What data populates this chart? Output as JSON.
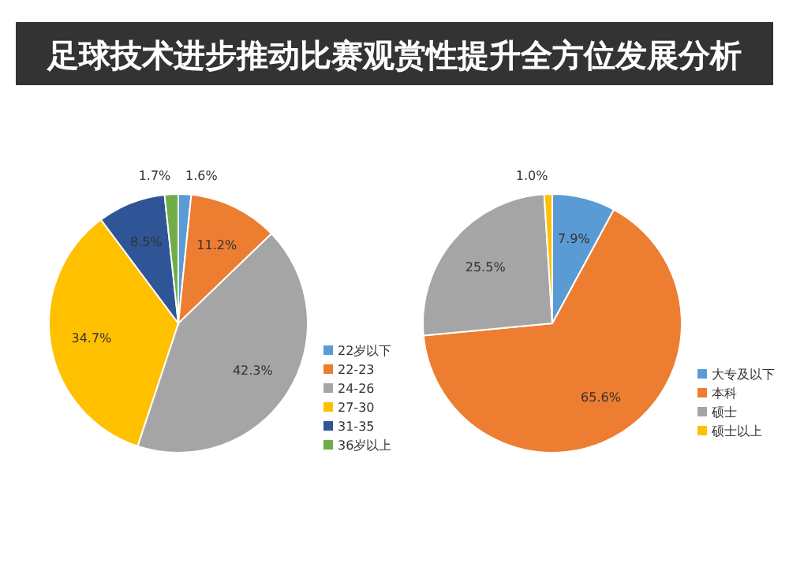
{
  "chart_data": [
    {
      "type": "pie",
      "title": "足球技术进步推动比赛观赏性提升全方位发展分析",
      "categories": [
        "22岁以下",
        "22-23",
        "24-26",
        "27-30",
        "31-35",
        "36岁以上"
      ],
      "values": [
        1.6,
        11.2,
        42.3,
        34.7,
        8.5,
        1.7
      ],
      "value_labels": [
        "1.6%",
        "11.2%",
        "42.3%",
        "34.7%",
        "8.5%",
        "1.7%"
      ],
      "colors": [
        "#5b9bd5",
        "#ed7d31",
        "#a5a5a5",
        "#ffc000",
        "#2f5597",
        "#70ad47"
      ],
      "legend": "right"
    },
    {
      "type": "pie",
      "categories": [
        "大专及以下",
        "本科",
        "硕士",
        "硕士以上"
      ],
      "values": [
        7.9,
        65.6,
        25.5,
        1.0
      ],
      "value_labels": [
        "7.9%",
        "65.6%",
        "25.5%",
        "1.0%"
      ],
      "colors": [
        "#5b9bd5",
        "#ed7d31",
        "#a5a5a5",
        "#ffc000"
      ],
      "legend": "right"
    }
  ]
}
